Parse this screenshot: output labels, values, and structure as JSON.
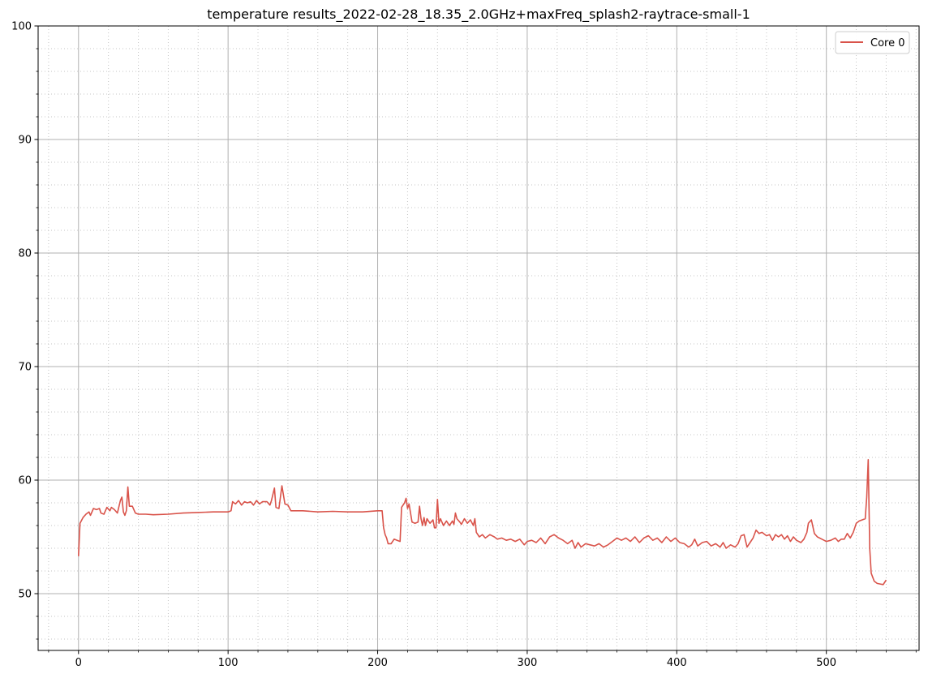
{
  "chart_data": {
    "type": "line",
    "title": "temperature results_2022-02-28_18.35_2.0GHz+maxFreq_splash2-raytrace-small-1",
    "xlabel": "",
    "ylabel": "",
    "xlim": [
      -27,
      562
    ],
    "ylim": [
      45,
      100
    ],
    "x_ticks": [
      0,
      100,
      200,
      300,
      400,
      500
    ],
    "y_ticks": [
      50,
      60,
      70,
      80,
      90,
      100
    ],
    "x_tick_labels": [
      "0",
      "100",
      "200",
      "300",
      "400",
      "500"
    ],
    "y_tick_labels": [
      "50",
      "60",
      "70",
      "80",
      "90",
      "100"
    ],
    "grid": {
      "major": true,
      "minor": true,
      "minor_style": "dotted"
    },
    "legend_position": "top-right",
    "series": [
      {
        "name": "Core 0",
        "color": "#d9534a",
        "points": [
          [
            0,
            53.3
          ],
          [
            1,
            56.2
          ],
          [
            3,
            56.7
          ],
          [
            5,
            57.0
          ],
          [
            7,
            57.2
          ],
          [
            8,
            56.9
          ],
          [
            10,
            57.5
          ],
          [
            12,
            57.4
          ],
          [
            14,
            57.5
          ],
          [
            15,
            57.1
          ],
          [
            17,
            57.0
          ],
          [
            19,
            57.6
          ],
          [
            21,
            57.3
          ],
          [
            22,
            57.6
          ],
          [
            24,
            57.4
          ],
          [
            26,
            57.1
          ],
          [
            28,
            58.2
          ],
          [
            29,
            58.5
          ],
          [
            30,
            57.2
          ],
          [
            31,
            56.9
          ],
          [
            32,
            57.3
          ],
          [
            33,
            59.4
          ],
          [
            34,
            57.7
          ],
          [
            36,
            57.7
          ],
          [
            38,
            57.1
          ],
          [
            40,
            57.0
          ],
          [
            45,
            57.0
          ],
          [
            50,
            56.95
          ],
          [
            60,
            57.0
          ],
          [
            70,
            57.1
          ],
          [
            80,
            57.15
          ],
          [
            90,
            57.2
          ],
          [
            100,
            57.2
          ],
          [
            102,
            57.3
          ],
          [
            103,
            58.1
          ],
          [
            105,
            57.9
          ],
          [
            107,
            58.2
          ],
          [
            109,
            57.8
          ],
          [
            111,
            58.1
          ],
          [
            113,
            58.0
          ],
          [
            115,
            58.1
          ],
          [
            117,
            57.8
          ],
          [
            119,
            58.2
          ],
          [
            121,
            57.9
          ],
          [
            123,
            58.1
          ],
          [
            126,
            58.1
          ],
          [
            128,
            57.8
          ],
          [
            129,
            58.2
          ],
          [
            131,
            59.3
          ],
          [
            132,
            57.6
          ],
          [
            134,
            57.5
          ],
          [
            136,
            59.5
          ],
          [
            138,
            57.9
          ],
          [
            140,
            57.8
          ],
          [
            142,
            57.3
          ],
          [
            150,
            57.3
          ],
          [
            160,
            57.2
          ],
          [
            170,
            57.25
          ],
          [
            180,
            57.2
          ],
          [
            190,
            57.2
          ],
          [
            200,
            57.3
          ],
          [
            203,
            57.3
          ],
          [
            204,
            55.8
          ],
          [
            205,
            55.2
          ],
          [
            206,
            54.9
          ],
          [
            207,
            54.4
          ],
          [
            209,
            54.4
          ],
          [
            211,
            54.8
          ],
          [
            213,
            54.7
          ],
          [
            215,
            54.6
          ],
          [
            216,
            57.6
          ],
          [
            218,
            58.0
          ],
          [
            219,
            58.4
          ],
          [
            220,
            57.5
          ],
          [
            221,
            57.9
          ],
          [
            223,
            56.3
          ],
          [
            225,
            56.2
          ],
          [
            227,
            56.3
          ],
          [
            228,
            57.7
          ],
          [
            229,
            56.6
          ],
          [
            230,
            56.0
          ],
          [
            231,
            56.7
          ],
          [
            232,
            56.0
          ],
          [
            233,
            56.6
          ],
          [
            234,
            56.4
          ],
          [
            235,
            56.2
          ],
          [
            237,
            56.5
          ],
          [
            238,
            55.8
          ],
          [
            239,
            55.8
          ],
          [
            240,
            58.3
          ],
          [
            241,
            56.2
          ],
          [
            242,
            56.6
          ],
          [
            244,
            56.0
          ],
          [
            246,
            56.4
          ],
          [
            248,
            56.0
          ],
          [
            250,
            56.4
          ],
          [
            251,
            56.1
          ],
          [
            252,
            57.1
          ],
          [
            253,
            56.6
          ],
          [
            255,
            56.3
          ],
          [
            256,
            56.1
          ],
          [
            258,
            56.6
          ],
          [
            260,
            56.2
          ],
          [
            262,
            56.5
          ],
          [
            264,
            56.0
          ],
          [
            265,
            56.6
          ],
          [
            266,
            55.4
          ],
          [
            268,
            55.0
          ],
          [
            270,
            55.2
          ],
          [
            272,
            54.9
          ],
          [
            275,
            55.2
          ],
          [
            278,
            55.0
          ],
          [
            280,
            54.8
          ],
          [
            283,
            54.9
          ],
          [
            286,
            54.7
          ],
          [
            289,
            54.8
          ],
          [
            292,
            54.6
          ],
          [
            295,
            54.8
          ],
          [
            298,
            54.3
          ],
          [
            300,
            54.6
          ],
          [
            303,
            54.7
          ],
          [
            306,
            54.5
          ],
          [
            309,
            54.9
          ],
          [
            312,
            54.4
          ],
          [
            315,
            55.0
          ],
          [
            318,
            55.2
          ],
          [
            321,
            54.9
          ],
          [
            324,
            54.7
          ],
          [
            327,
            54.4
          ],
          [
            330,
            54.7
          ],
          [
            332,
            54.0
          ],
          [
            334,
            54.5
          ],
          [
            336,
            54.1
          ],
          [
            339,
            54.4
          ],
          [
            342,
            54.3
          ],
          [
            345,
            54.2
          ],
          [
            348,
            54.4
          ],
          [
            351,
            54.1
          ],
          [
            354,
            54.3
          ],
          [
            357,
            54.6
          ],
          [
            360,
            54.9
          ],
          [
            363,
            54.7
          ],
          [
            366,
            54.9
          ],
          [
            369,
            54.6
          ],
          [
            372,
            55.0
          ],
          [
            375,
            54.5
          ],
          [
            378,
            54.9
          ],
          [
            381,
            55.1
          ],
          [
            384,
            54.7
          ],
          [
            387,
            54.9
          ],
          [
            390,
            54.5
          ],
          [
            393,
            55.0
          ],
          [
            396,
            54.6
          ],
          [
            399,
            54.9
          ],
          [
            402,
            54.5
          ],
          [
            405,
            54.4
          ],
          [
            408,
            54.1
          ],
          [
            410,
            54.3
          ],
          [
            412,
            54.8
          ],
          [
            414,
            54.2
          ],
          [
            417,
            54.5
          ],
          [
            420,
            54.6
          ],
          [
            423,
            54.2
          ],
          [
            426,
            54.4
          ],
          [
            429,
            54.1
          ],
          [
            431,
            54.5
          ],
          [
            433,
            54.0
          ],
          [
            436,
            54.3
          ],
          [
            439,
            54.1
          ],
          [
            441,
            54.4
          ],
          [
            443,
            55.1
          ],
          [
            445,
            55.2
          ],
          [
            447,
            54.1
          ],
          [
            449,
            54.5
          ],
          [
            451,
            54.9
          ],
          [
            453,
            55.6
          ],
          [
            455,
            55.3
          ],
          [
            457,
            55.4
          ],
          [
            460,
            55.1
          ],
          [
            462,
            55.2
          ],
          [
            464,
            54.7
          ],
          [
            466,
            55.2
          ],
          [
            468,
            55.0
          ],
          [
            470,
            55.2
          ],
          [
            472,
            54.8
          ],
          [
            474,
            55.1
          ],
          [
            476,
            54.6
          ],
          [
            478,
            55.0
          ],
          [
            480,
            54.7
          ],
          [
            483,
            54.5
          ],
          [
            485,
            54.8
          ],
          [
            487,
            55.4
          ],
          [
            488,
            56.2
          ],
          [
            490,
            56.5
          ],
          [
            492,
            55.3
          ],
          [
            494,
            55.0
          ],
          [
            497,
            54.8
          ],
          [
            500,
            54.6
          ],
          [
            503,
            54.7
          ],
          [
            506,
            54.9
          ],
          [
            508,
            54.6
          ],
          [
            510,
            54.8
          ],
          [
            512,
            54.8
          ],
          [
            514,
            55.3
          ],
          [
            516,
            54.9
          ],
          [
            518,
            55.4
          ],
          [
            520,
            56.2
          ],
          [
            522,
            56.4
          ],
          [
            524,
            56.5
          ],
          [
            526,
            56.6
          ],
          [
            527,
            58.5
          ],
          [
            528,
            61.8
          ],
          [
            529,
            54.0
          ],
          [
            530,
            51.8
          ],
          [
            532,
            51.1
          ],
          [
            534,
            50.9
          ],
          [
            536,
            50.85
          ],
          [
            538,
            50.8
          ],
          [
            539,
            51.0
          ],
          [
            540,
            51.2
          ]
        ]
      }
    ]
  }
}
